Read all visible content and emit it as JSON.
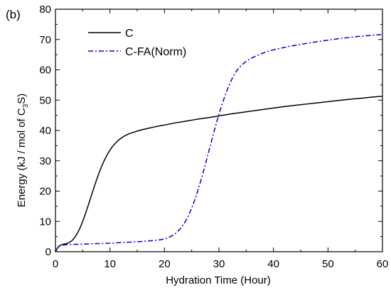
{
  "chart_data": {
    "type": "line",
    "panel_label": "(b)",
    "xlabel": "Hydration Time (Hour)",
    "ylabel": {
      "before": "Energy (kJ / mol of C",
      "sub1": "3",
      "mid": "S",
      "after": ")"
    },
    "xlim": [
      0,
      60
    ],
    "ylim": [
      0,
      80
    ],
    "xticks": [
      0,
      10,
      20,
      30,
      40,
      50,
      60
    ],
    "yticks": [
      0,
      10,
      20,
      30,
      40,
      50,
      60,
      70,
      80
    ],
    "grid": false,
    "legend_position": "top-left",
    "series": [
      {
        "name": "C",
        "color": "#000000",
        "style": "solid",
        "x": [
          0,
          0.3,
          0.6,
          1,
          1.5,
          2,
          2.5,
          3,
          3.5,
          4,
          4.5,
          5,
          5.5,
          6,
          6.5,
          7,
          7.5,
          8,
          8.5,
          9,
          9.5,
          10,
          10.5,
          11,
          11.5,
          12,
          12.5,
          13,
          13.5,
          14,
          15,
          16,
          17,
          18,
          19,
          20,
          22,
          24,
          26,
          28,
          30,
          32,
          34,
          36,
          38,
          40,
          42,
          44,
          46,
          48,
          50,
          52,
          54,
          56,
          58,
          60
        ],
        "y": [
          0,
          1.0,
          1.8,
          2.2,
          2.5,
          2.7,
          3.0,
          3.6,
          4.6,
          6.0,
          7.8,
          10.0,
          12.5,
          15.2,
          18.0,
          20.8,
          23.5,
          26.0,
          28.3,
          30.3,
          32.0,
          33.5,
          34.8,
          35.8,
          36.7,
          37.4,
          38.0,
          38.5,
          38.9,
          39.2,
          39.8,
          40.3,
          40.7,
          41.1,
          41.5,
          41.8,
          42.5,
          43.1,
          43.7,
          44.2,
          44.8,
          45.4,
          45.9,
          46.4,
          46.9,
          47.4,
          47.9,
          48.3,
          48.7,
          49.1,
          49.5,
          49.9,
          50.3,
          50.6,
          51.0,
          51.3
        ]
      },
      {
        "name": "C-FA(Norm)",
        "color": "#0000dd",
        "style": "dash-dot",
        "x": [
          0,
          0.3,
          0.6,
          1,
          2,
          3,
          5,
          8,
          10,
          12,
          14,
          16,
          18,
          19,
          20,
          20.5,
          21,
          21.5,
          22,
          22.5,
          23,
          23.5,
          24,
          24.5,
          25,
          25.5,
          26,
          26.5,
          27,
          27.5,
          28,
          28.5,
          29,
          29.5,
          30,
          30.5,
          31,
          31.5,
          32,
          32.5,
          33,
          33.5,
          34,
          34.5,
          35,
          35.5,
          36,
          36.5,
          37,
          37.5,
          38,
          38.5,
          39,
          40,
          41,
          42,
          43,
          44,
          46,
          48,
          50,
          52,
          54,
          56,
          58,
          60
        ],
        "y": [
          0,
          1.0,
          1.8,
          2.1,
          2.3,
          2.4,
          2.5,
          2.7,
          2.8,
          3.0,
          3.2,
          3.4,
          3.7,
          3.9,
          4.2,
          4.5,
          4.9,
          5.4,
          6.0,
          6.8,
          7.8,
          9.0,
          10.5,
          12.3,
          14.4,
          16.8,
          19.5,
          22.4,
          25.5,
          28.8,
          32.2,
          35.6,
          39.0,
          42.3,
          45.4,
          48.2,
          50.9,
          53.3,
          55.5,
          57.4,
          59.0,
          60.3,
          61.3,
          62.1,
          62.8,
          63.4,
          63.9,
          64.3,
          64.7,
          65.1,
          65.5,
          65.8,
          66.1,
          66.6,
          67.0,
          67.4,
          67.8,
          68.1,
          68.7,
          69.3,
          69.8,
          70.3,
          70.7,
          71.1,
          71.4,
          71.7
        ]
      }
    ]
  }
}
